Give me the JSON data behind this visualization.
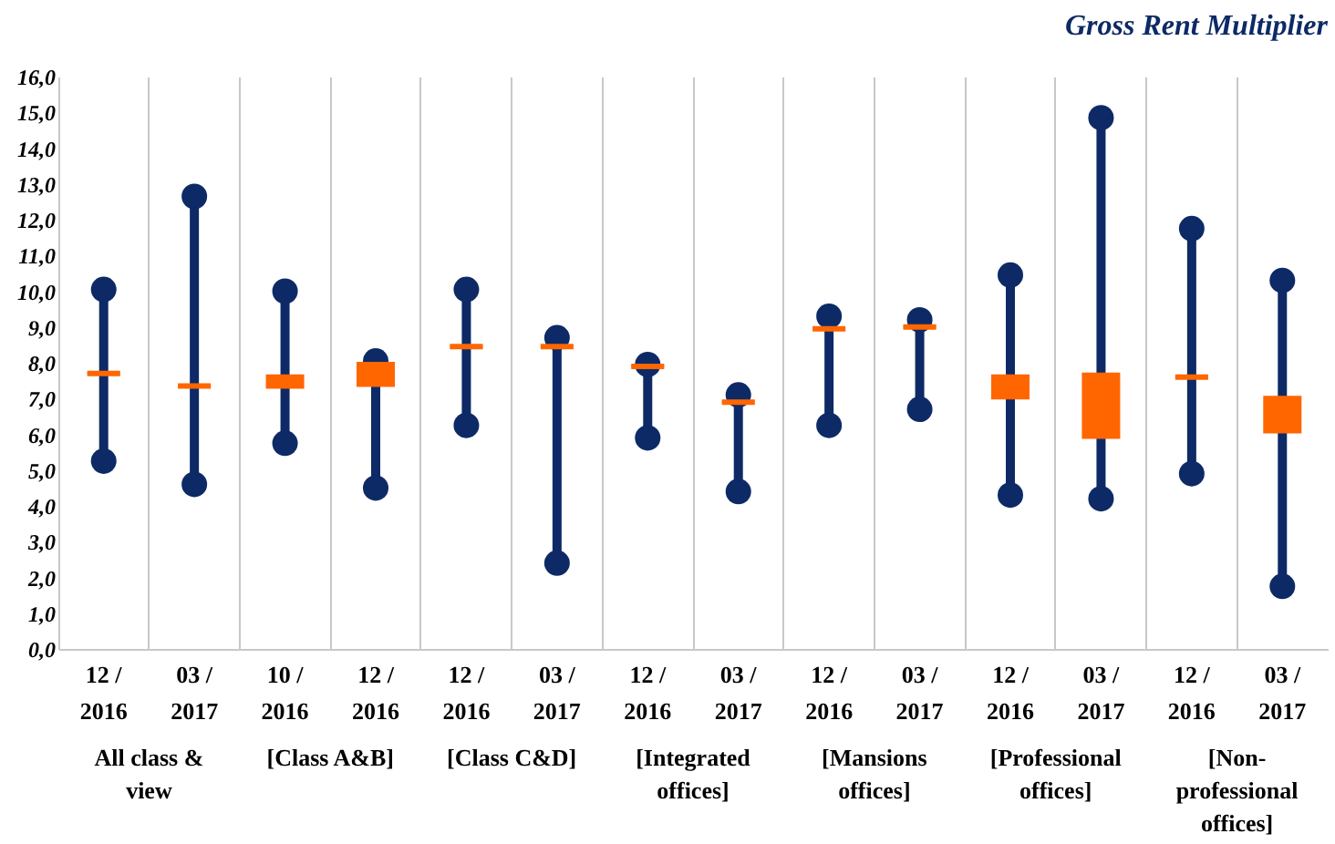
{
  "chart_data": {
    "type": "box",
    "title": "Gross Rent Multiplier",
    "categories": [
      "12 / 2016",
      "03 / 2017",
      "10 / 2016",
      "12 / 2016",
      "12 / 2016",
      "03 / 2017",
      "12 / 2016",
      "03 / 2017",
      "12 / 2016",
      "03 / 2017",
      "12 / 2016",
      "03 / 2017",
      "12 / 2016",
      "03 / 2017"
    ],
    "series": [
      {
        "color": "#ff6600",
        "boxes": [
          {
            "low": 5.25,
            "q1": 7.7,
            "median": 7.7,
            "q3": 7.7,
            "high": 10.05
          },
          {
            "low": 4.6,
            "q1": 7.35,
            "median": 7.35,
            "q3": 7.35,
            "high": 12.65
          },
          {
            "low": 5.75,
            "q1": 7.35,
            "median": 7.5,
            "q3": 7.6,
            "high": 10.0
          },
          {
            "low": 4.5,
            "q1": 7.4,
            "median": 7.7,
            "q3": 7.95,
            "high": 8.05
          },
          {
            "low": 6.25,
            "q1": 8.45,
            "median": 8.45,
            "q3": 8.45,
            "high": 10.05
          },
          {
            "low": 2.4,
            "q1": 8.45,
            "median": 8.45,
            "q3": 8.45,
            "high": 8.7
          },
          {
            "low": 5.9,
            "q1": 7.9,
            "median": 7.9,
            "q3": 7.9,
            "high": 7.95
          },
          {
            "low": 4.4,
            "q1": 6.9,
            "median": 6.9,
            "q3": 6.9,
            "high": 7.1
          },
          {
            "low": 6.25,
            "q1": 8.95,
            "median": 8.95,
            "q3": 8.95,
            "high": 9.3
          },
          {
            "low": 6.7,
            "q1": 9.0,
            "median": 9.0,
            "q3": 9.0,
            "high": 9.2
          },
          {
            "low": 4.3,
            "q1": 7.05,
            "median": 7.3,
            "q3": 7.6,
            "high": 10.45
          },
          {
            "low": 4.2,
            "q1": 5.95,
            "median": 6.8,
            "q3": 7.65,
            "high": 14.85
          },
          {
            "low": 4.9,
            "q1": 7.6,
            "median": 7.6,
            "q3": 7.6,
            "high": 11.75
          },
          {
            "low": 1.75,
            "q1": 6.1,
            "median": 6.55,
            "q3": 7.0,
            "high": 10.3
          }
        ]
      }
    ],
    "ylim": [
      0,
      16
    ],
    "yticks": [
      {
        "value": 0,
        "label": "0,0"
      },
      {
        "value": 1,
        "label": "1,0"
      },
      {
        "value": 2,
        "label": "2,0"
      },
      {
        "value": 3,
        "label": "3,0"
      },
      {
        "value": 4,
        "label": "4,0"
      },
      {
        "value": 5,
        "label": "5,0"
      },
      {
        "value": 6,
        "label": "6,0"
      },
      {
        "value": 7,
        "label": "7,0"
      },
      {
        "value": 8,
        "label": "8,0"
      },
      {
        "value": 9,
        "label": "9,0"
      },
      {
        "value": 10,
        "label": "10,0"
      },
      {
        "value": 11,
        "label": "11,0"
      },
      {
        "value": 12,
        "label": "12,0"
      },
      {
        "value": 13,
        "label": "13,0"
      },
      {
        "value": 14,
        "label": "14,0"
      },
      {
        "value": 15,
        "label": "15,0"
      },
      {
        "value": 16,
        "label": "16,0"
      }
    ],
    "grid": "x",
    "marker": "circle",
    "annotations": [
      "All class & view",
      "[Class A&B]",
      "[Class C&D]",
      "[Integrated offices]",
      "[Mansions offices]",
      "[Professional offices]",
      "[Non-professional offices]"
    ]
  }
}
